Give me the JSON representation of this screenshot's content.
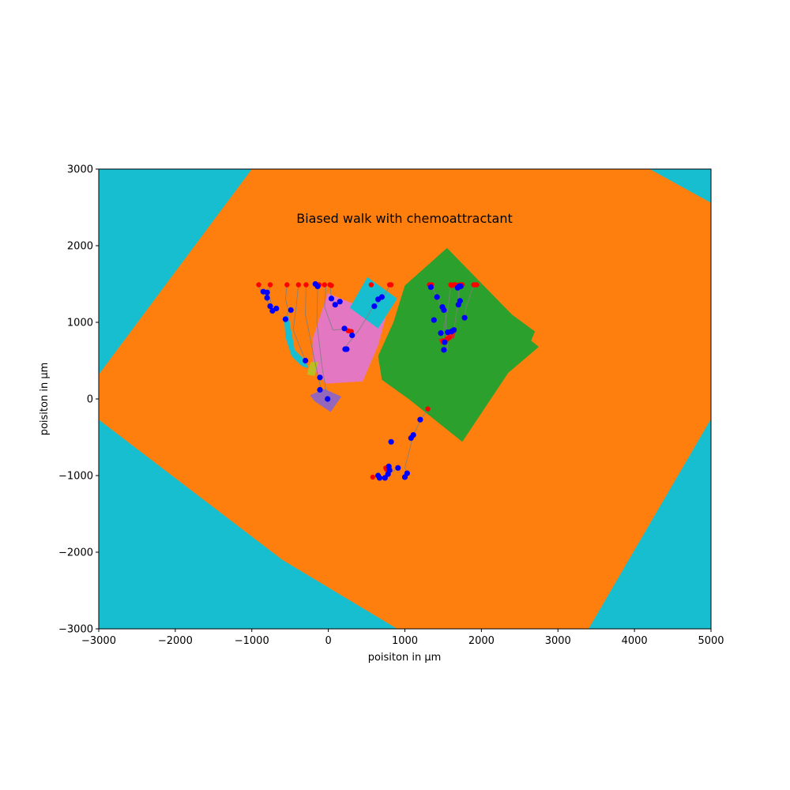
{
  "chart_data": {
    "type": "scatter",
    "title": "Biased walk with chemoattractant",
    "xlabel": "poisiton in µm",
    "ylabel": "poisiton in µm",
    "xlim": [
      -3000,
      5000
    ],
    "ylim": [
      -3000,
      3000
    ],
    "xticks": [
      -3000,
      -2000,
      -1000,
      0,
      1000,
      2000,
      3000,
      4000,
      5000
    ],
    "yticks": [
      -3000,
      -2000,
      -1000,
      0,
      1000,
      2000,
      3000
    ],
    "xtick_labels": [
      "−3000",
      "−2000",
      "−1000",
      "0",
      "1000",
      "2000",
      "3000",
      "4000",
      "5000"
    ],
    "ytick_labels": [
      "−3000",
      "−2000",
      "−1000",
      "0",
      "1000",
      "2000",
      "3000"
    ],
    "grid": false,
    "background_color": "#17becf",
    "regions": [
      {
        "color": "#ff7f0e",
        "polygon": [
          [
            -1000,
            3000
          ],
          [
            4200,
            3000
          ],
          [
            5000,
            2560
          ],
          [
            5000,
            -260
          ],
          [
            3400,
            -3000
          ],
          [
            900,
            -3000
          ],
          [
            -600,
            -2100
          ],
          [
            -3000,
            -270
          ],
          [
            -3000,
            320
          ]
        ]
      },
      {
        "color": "#2ca02c",
        "polygon": [
          [
            1550,
            1970
          ],
          [
            2400,
            1100
          ],
          [
            2700,
            880
          ],
          [
            2650,
            760
          ],
          [
            2750,
            680
          ],
          [
            2350,
            340
          ],
          [
            1750,
            -560
          ],
          [
            1050,
            0
          ],
          [
            700,
            250
          ],
          [
            650,
            560
          ],
          [
            850,
            1000
          ],
          [
            1000,
            1480
          ]
        ]
      },
      {
        "color": "#e377c2",
        "polygon": [
          [
            -10,
            1380
          ],
          [
            750,
            1070
          ],
          [
            650,
            700
          ],
          [
            450,
            230
          ],
          [
            -30,
            200
          ],
          [
            -200,
            400
          ],
          [
            -200,
            800
          ],
          [
            -100,
            1100
          ]
        ]
      },
      {
        "color": "#17becf",
        "polygon": [
          [
            510,
            1590
          ],
          [
            900,
            1310
          ],
          [
            650,
            920
          ],
          [
            280,
            1190
          ]
        ]
      },
      {
        "color": "#9467bd",
        "polygon": [
          [
            -180,
            -30
          ],
          [
            30,
            -170
          ],
          [
            170,
            30
          ],
          [
            -50,
            130
          ],
          [
            -240,
            50
          ]
        ]
      },
      {
        "color": "#bcbd22",
        "polygon": [
          [
            -230,
            480
          ],
          [
            -130,
            480
          ],
          [
            -180,
            300
          ],
          [
            -280,
            320
          ]
        ]
      },
      {
        "color": "#17becf",
        "polygon": [
          [
            -580,
            1080
          ],
          [
            -520,
            1080
          ],
          [
            -440,
            640
          ],
          [
            -300,
            500
          ],
          [
            -260,
            400
          ],
          [
            -350,
            430
          ],
          [
            -480,
            560
          ],
          [
            -560,
            800
          ]
        ]
      },
      {
        "color": "#d62728",
        "polygon": [
          [
            1440,
            780
          ],
          [
            1640,
            790
          ],
          [
            1680,
            930
          ],
          [
            1560,
            880
          ],
          [
            1480,
            700
          ]
        ]
      }
    ],
    "tracks": [
      [
        [
          -910,
          1490
        ],
        [
          -880,
          1400
        ],
        [
          -810,
          1310
        ],
        [
          -760,
          1180
        ]
      ],
      [
        [
          -760,
          1490
        ],
        [
          -780,
          1380
        ],
        [
          -740,
          1220
        ],
        [
          -680,
          1180
        ]
      ],
      [
        [
          -540,
          1490
        ],
        [
          -560,
          1300
        ],
        [
          -520,
          1150
        ],
        [
          -560,
          1040
        ]
      ],
      [
        [
          -390,
          1490
        ],
        [
          -420,
          1200
        ],
        [
          -460,
          900
        ],
        [
          -300,
          500
        ]
      ],
      [
        [
          -290,
          1490
        ],
        [
          -300,
          1100
        ],
        [
          -200,
          600
        ],
        [
          -130,
          280
        ],
        [
          -90,
          100
        ]
      ],
      [
        [
          -140,
          1490
        ],
        [
          -150,
          1000
        ],
        [
          -80,
          400
        ],
        [
          -10,
          0
        ]
      ],
      [
        [
          20,
          1490
        ],
        [
          40,
          1300
        ],
        [
          100,
          1220
        ],
        [
          150,
          1270
        ]
      ],
      [
        [
          -30,
          1490
        ],
        [
          -50,
          1200
        ],
        [
          60,
          900
        ],
        [
          220,
          910
        ],
        [
          310,
          840
        ]
      ],
      [
        [
          810,
          1490
        ],
        [
          700,
          1300
        ],
        [
          590,
          1210
        ],
        [
          400,
          900
        ],
        [
          200,
          650
        ]
      ],
      [
        [
          1320,
          1490
        ],
        [
          1360,
          1450
        ],
        [
          1420,
          1330
        ],
        [
          1480,
          1170
        ],
        [
          1530,
          1110
        ],
        [
          1560,
          640
        ]
      ],
      [
        [
          1600,
          1490
        ],
        [
          1560,
          1170
        ],
        [
          1500,
          870
        ],
        [
          1510,
          740
        ]
      ],
      [
        [
          1700,
          1490
        ],
        [
          1700,
          1280
        ],
        [
          1640,
          900
        ],
        [
          1600,
          860
        ]
      ],
      [
        [
          1900,
          1490
        ],
        [
          1800,
          1200
        ],
        [
          1780,
          1060
        ]
      ],
      [
        [
          1300,
          -130
        ],
        [
          1210,
          -270
        ],
        [
          1110,
          -470
        ],
        [
          1000,
          -900
        ],
        [
          1030,
          -970
        ]
      ],
      [
        [
          580,
          -1020
        ],
        [
          650,
          -1000
        ],
        [
          720,
          -1030
        ],
        [
          800,
          -970
        ],
        [
          920,
          -900
        ]
      ]
    ],
    "series": [
      {
        "name": "",
        "color": "#ff0000",
        "x": [
          -910,
          -760,
          -540,
          -390,
          -290,
          -140,
          -120,
          -50,
          20,
          40,
          560,
          800,
          820,
          1320,
          1350,
          1600,
          1610,
          1640,
          1660,
          1700,
          1720,
          1750,
          1900,
          1920,
          1940,
          1300,
          580,
          750,
          760,
          1500,
          1550,
          1580,
          260,
          300
        ],
        "y": [
          1490,
          1490,
          1490,
          1490,
          1490,
          1490,
          1490,
          1490,
          1490,
          1480,
          1490,
          1490,
          1490,
          1490,
          1490,
          1490,
          1480,
          1490,
          1490,
          1480,
          1490,
          1490,
          1490,
          1490,
          1490,
          -130,
          -1020,
          -900,
          -920,
          760,
          780,
          800,
          890,
          880
        ]
      },
      {
        "name": "",
        "color": "#0000ff",
        "x": [
          -850,
          -800,
          -800,
          -760,
          -730,
          -680,
          -490,
          -560,
          -300,
          -140,
          -170,
          -110,
          -110,
          -10,
          40,
          90,
          150,
          210,
          220,
          240,
          310,
          600,
          650,
          700,
          1340,
          1420,
          1380,
          1490,
          1510,
          1470,
          1520,
          1510,
          1560,
          1610,
          1640,
          1690,
          1710,
          1720,
          1700,
          1730,
          1780,
          1200,
          1110,
          1080,
          820,
          800,
          780,
          790,
          740,
          650,
          670,
          1000,
          1030,
          910
        ],
        "y": [
          1400,
          1390,
          1320,
          1210,
          1150,
          1180,
          1160,
          1040,
          500,
          1470,
          1500,
          280,
          120,
          0,
          1310,
          1230,
          1270,
          920,
          650,
          650,
          830,
          1210,
          1300,
          1330,
          1460,
          1330,
          1030,
          1200,
          1160,
          860,
          740,
          640,
          870,
          880,
          900,
          1450,
          1470,
          1280,
          1230,
          1470,
          1060,
          -270,
          -470,
          -510,
          -560,
          -930,
          -980,
          -880,
          -1030,
          -1000,
          -1030,
          -1020,
          -970,
          -900
        ]
      }
    ]
  }
}
